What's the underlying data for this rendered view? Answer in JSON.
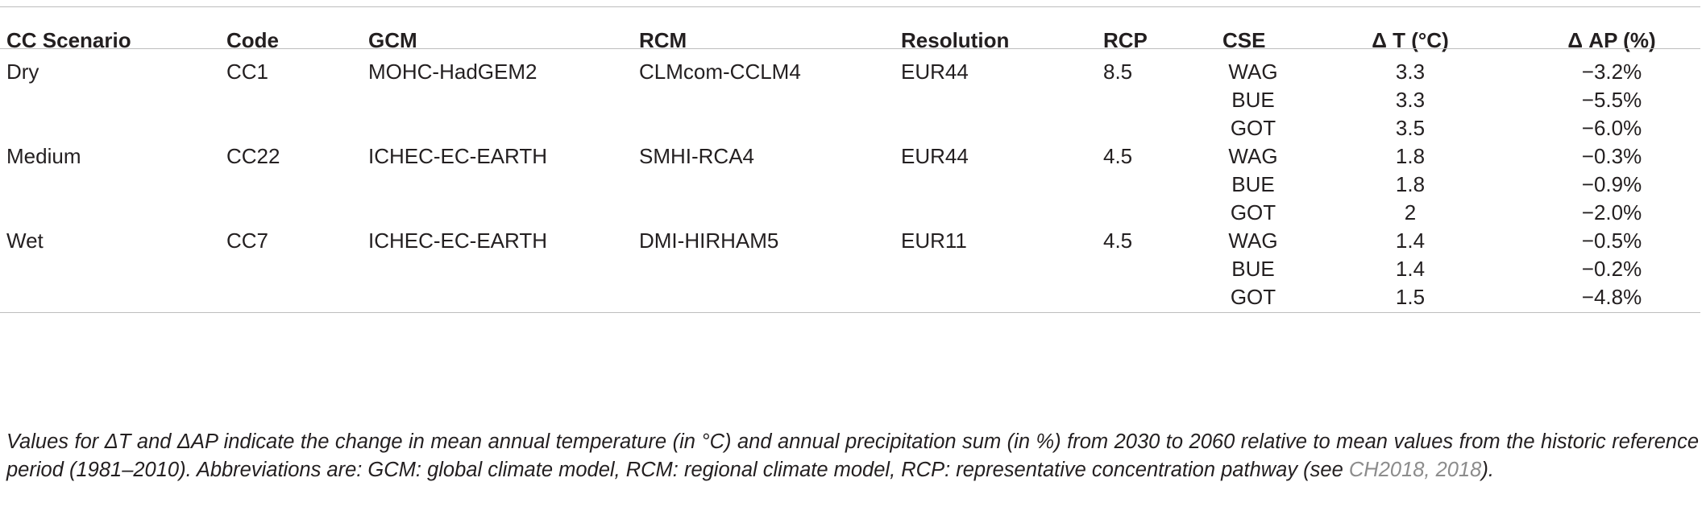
{
  "table": {
    "headers": {
      "scenario": "CC Scenario",
      "code": "Code",
      "gcm": "GCM",
      "rcm": "RCM",
      "resolution": "Resolution",
      "rcp": "RCP",
      "cse": "CSE",
      "dt": "Δ T (°C)",
      "dap": "Δ AP (%)"
    },
    "groups": [
      {
        "scenario": "Dry",
        "code": "CC1",
        "gcm": "MOHC-HadGEM2",
        "rcm": "CLMcom-CCLM4",
        "resolution": "EUR44",
        "rcp": "8.5",
        "rows": [
          {
            "cse": "WAG",
            "dt": "3.3",
            "dap": "−3.2%"
          },
          {
            "cse": "BUE",
            "dt": "3.3",
            "dap": "−5.5%"
          },
          {
            "cse": "GOT",
            "dt": "3.5",
            "dap": "−6.0%"
          }
        ]
      },
      {
        "scenario": "Medium",
        "code": "CC22",
        "gcm": "ICHEC-EC-EARTH",
        "rcm": "SMHI-RCA4",
        "resolution": "EUR44",
        "rcp": "4.5",
        "rows": [
          {
            "cse": "WAG",
            "dt": "1.8",
            "dap": "−0.3%"
          },
          {
            "cse": "BUE",
            "dt": "1.8",
            "dap": "−0.9%"
          },
          {
            "cse": "GOT",
            "dt": "2",
            "dap": "−2.0%"
          }
        ]
      },
      {
        "scenario": "Wet",
        "code": "CC7",
        "gcm": "ICHEC-EC-EARTH",
        "rcm": "DMI-HIRHAM5",
        "resolution": "EUR11",
        "rcp": "4.5",
        "rows": [
          {
            "cse": "WAG",
            "dt": "1.4",
            "dap": "−0.5%"
          },
          {
            "cse": "BUE",
            "dt": "1.4",
            "dap": "−0.2%"
          },
          {
            "cse": "GOT",
            "dt": "1.5",
            "dap": "−4.8%"
          }
        ]
      }
    ]
  },
  "caption": {
    "text": "Values for ΔT and ΔAP indicate the change in mean annual temperature (in °C) and annual precipitation sum (in %) from 2030 to 2060 relative to mean values from the historic reference period (1981–2010). Abbreviations are: GCM: global climate model, RCM: regional climate model, RCP: representative concentration pathway (see ",
    "reference": "CH2018, 2018",
    "end": ")."
  }
}
